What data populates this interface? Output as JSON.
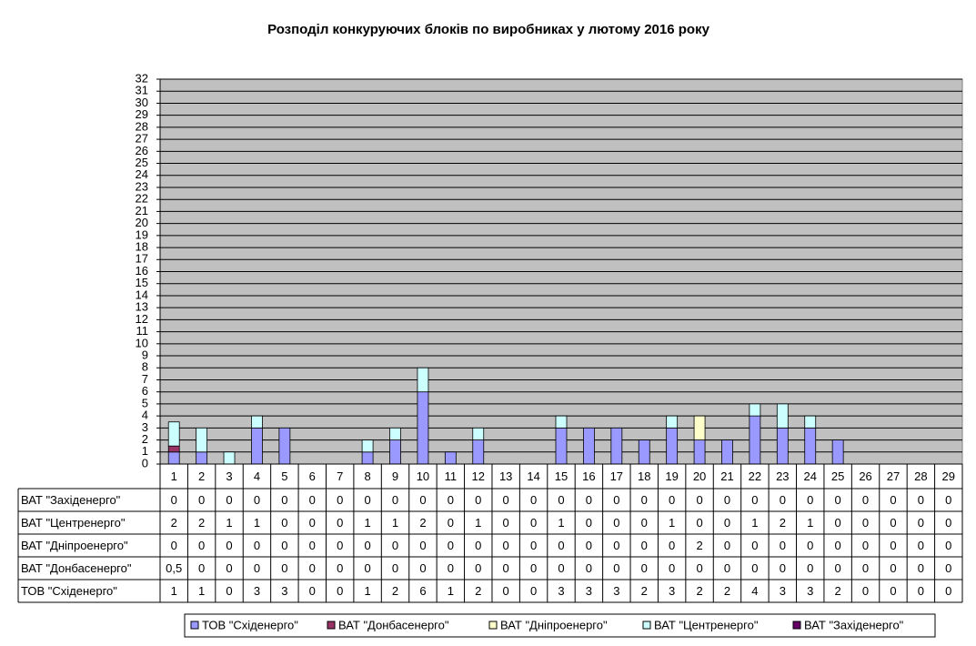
{
  "chart_data": {
    "type": "stacked-bar",
    "title": "Розподіл конкуруючих блоків по виробниках у лютому 2016 року",
    "categories": [
      "1",
      "2",
      "3",
      "4",
      "5",
      "6",
      "7",
      "8",
      "9",
      "10",
      "11",
      "12",
      "13",
      "14",
      "15",
      "16",
      "17",
      "18",
      "19",
      "20",
      "21",
      "22",
      "23",
      "24",
      "25",
      "26",
      "27",
      "28",
      "29"
    ],
    "series": [
      {
        "name": "ТОВ \"Східенерго\"",
        "color": "#9999ff",
        "values": [
          1,
          1,
          0,
          3,
          3,
          0,
          0,
          1,
          2,
          6,
          1,
          2,
          0,
          0,
          3,
          3,
          3,
          2,
          3,
          2,
          2,
          4,
          3,
          3,
          2,
          0,
          0,
          0,
          0
        ]
      },
      {
        "name": "ВАТ \"Донбасенерго\"",
        "color": "#993366",
        "values": [
          0.5,
          0,
          0,
          0,
          0,
          0,
          0,
          0,
          0,
          0,
          0,
          0,
          0,
          0,
          0,
          0,
          0,
          0,
          0,
          0,
          0,
          0,
          0,
          0,
          0,
          0,
          0,
          0,
          0
        ],
        "value_labels": [
          "0,5",
          "0",
          "0",
          "0",
          "0",
          "0",
          "0",
          "0",
          "0",
          "0",
          "0",
          "0",
          "0",
          "0",
          "0",
          "0",
          "0",
          "0",
          "0",
          "0",
          "0",
          "0",
          "0",
          "0",
          "0",
          "0",
          "0",
          "0",
          "0"
        ]
      },
      {
        "name": "ВАТ \"Дніпроенерго\"",
        "color": "#ffffcc",
        "values": [
          0,
          0,
          0,
          0,
          0,
          0,
          0,
          0,
          0,
          0,
          0,
          0,
          0,
          0,
          0,
          0,
          0,
          0,
          0,
          2,
          0,
          0,
          0,
          0,
          0,
          0,
          0,
          0,
          0
        ]
      },
      {
        "name": "ВАТ \"Центренерго\"",
        "color": "#ccffff",
        "values": [
          2,
          2,
          1,
          1,
          0,
          0,
          0,
          1,
          1,
          2,
          0,
          1,
          0,
          0,
          1,
          0,
          0,
          0,
          1,
          0,
          0,
          1,
          2,
          1,
          0,
          0,
          0,
          0,
          0
        ]
      },
      {
        "name": "ВАТ \"Західенерго\"",
        "color": "#660066",
        "values": [
          0,
          0,
          0,
          0,
          0,
          0,
          0,
          0,
          0,
          0,
          0,
          0,
          0,
          0,
          0,
          0,
          0,
          0,
          0,
          0,
          0,
          0,
          0,
          0,
          0,
          0,
          0,
          0,
          0
        ]
      }
    ],
    "ylim": [
      0,
      32
    ],
    "yticks": [
      0,
      1,
      2,
      3,
      4,
      5,
      6,
      7,
      8,
      9,
      10,
      11,
      12,
      13,
      14,
      15,
      16,
      17,
      18,
      19,
      20,
      21,
      22,
      23,
      24,
      25,
      26,
      27,
      28,
      29,
      30,
      31,
      32
    ],
    "grid": true,
    "plot_background": "#c0c0c0"
  }
}
